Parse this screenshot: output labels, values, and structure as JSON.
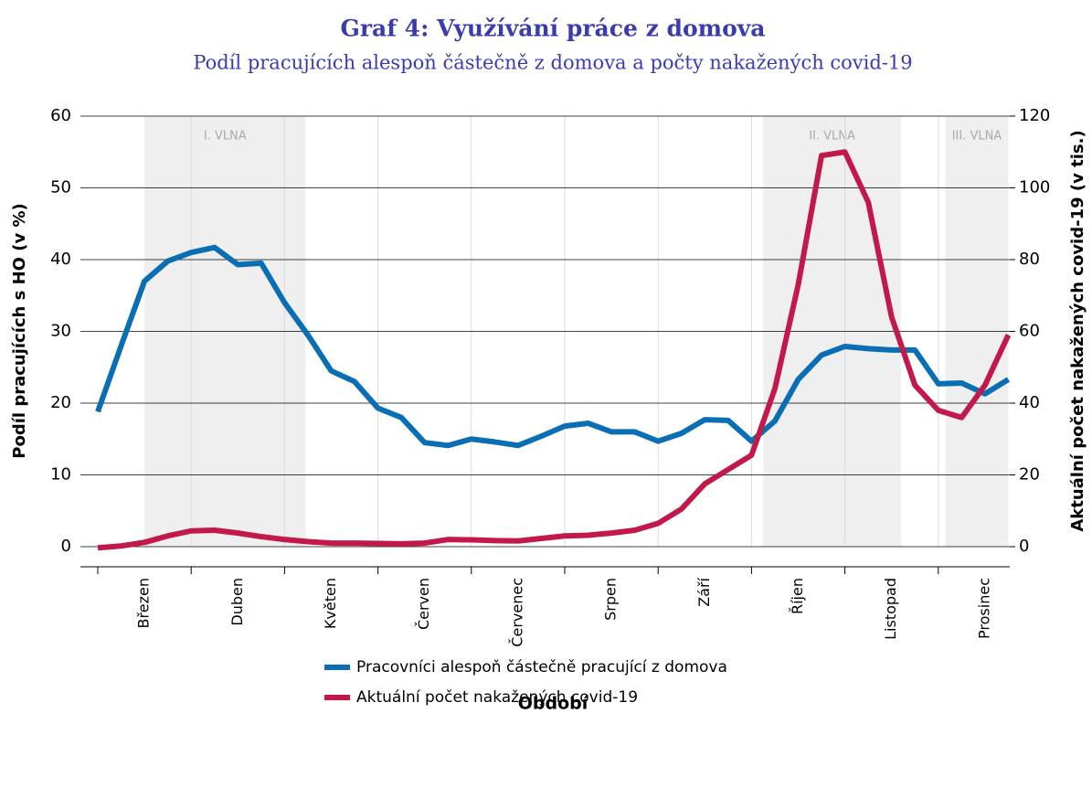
{
  "chart_data": {
    "type": "line",
    "title": "Graf 4: Využívání práce z domova",
    "subtitle": "Podíl pracujících alespoň částečně z domova a počty nakažených covid-19",
    "x_label": "Období",
    "y_label": "Podíl pracujících s HO (v %)",
    "y2_label": "Aktuální počet nakažených covid-19 (v tis.)",
    "categories": [
      null,
      null,
      "Březen",
      null,
      null,
      null,
      "Duben",
      null,
      null,
      null,
      "Květen",
      null,
      null,
      null,
      "Červen",
      null,
      null,
      null,
      "Červenec",
      null,
      null,
      null,
      "Srpen",
      null,
      null,
      null,
      "Září",
      null,
      null,
      null,
      "Říjen",
      null,
      null,
      null,
      "Listopad",
      null,
      null,
      null,
      "Prosinec",
      null
    ],
    "series": [
      {
        "name": "Pracovníci alespoň částečně pracující z domova",
        "color": "#0a6eb4",
        "values": [
          18.8,
          28,
          37,
          39.8,
          41,
          41.7,
          39.3,
          39.5,
          34,
          29.5,
          24.5,
          23,
          19.3,
          18,
          14.5,
          14.1,
          15,
          14.6,
          14.1,
          15.4,
          16.8,
          17.2,
          16,
          16,
          14.7,
          15.8,
          17.7,
          17.6,
          14.7,
          17.5,
          23.3,
          26.7,
          27.9,
          27.6,
          27.4,
          27.4,
          22.7,
          22.8,
          21.3,
          23.3
        ]
      },
      {
        "name": "Aktuální počet nakažených covid-19",
        "color": "#c3184a",
        "axis": "y2",
        "values": [
          -0.3,
          0.2,
          1.2,
          3,
          4.4,
          4.6,
          3.8,
          2.8,
          2,
          1.4,
          1,
          1,
          0.9,
          0.8,
          1,
          2,
          1.9,
          1.7,
          1.6,
          2.3,
          3,
          3.2,
          3.8,
          4.6,
          6.5,
          10.5,
          17.5,
          21.5,
          25.5,
          44,
          73,
          109,
          110,
          96,
          64,
          45,
          38,
          36,
          45,
          59
        ]
      }
    ],
    "bands": [
      {
        "label": "I. VLNA",
        "start": 2,
        "end": 8.9
      },
      {
        "label": "II. VLNA",
        "start": 28.5,
        "end": 34.4
      },
      {
        "label": "III. VLNA",
        "start": 36.3,
        "end": 39
      }
    ],
    "ylim": [
      -2.8,
      60
    ],
    "yticks": [
      0,
      10,
      20,
      30,
      40,
      50,
      60
    ],
    "y2lim": [
      -5.6,
      120
    ],
    "y2ticks": [
      0,
      20,
      40,
      60,
      80,
      100,
      120
    ],
    "grid": true
  }
}
